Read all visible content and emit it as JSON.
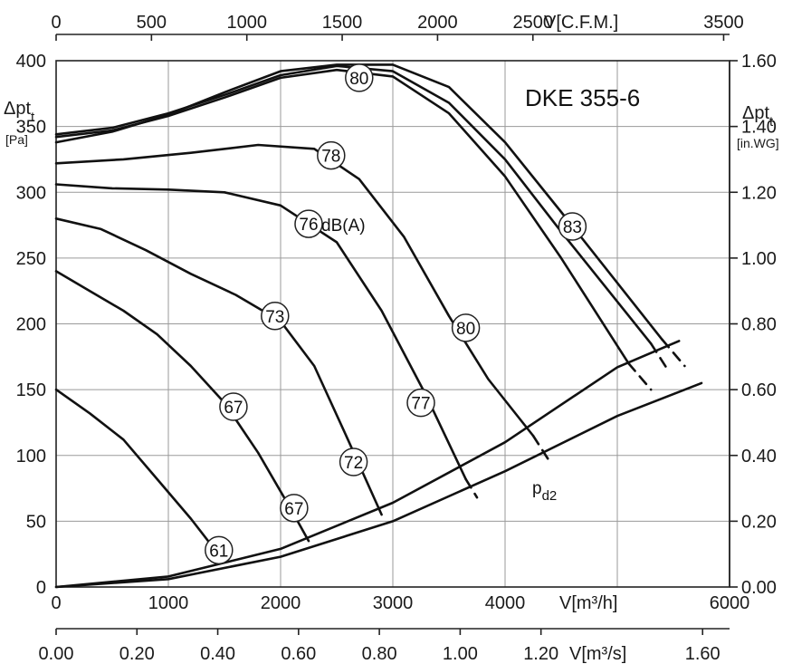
{
  "chart_data": {
    "type": "line",
    "title": "DKE 355-6",
    "x_axis_bottom": {
      "label": "V[m³/h]",
      "ticks": [
        "0",
        "1000",
        "2000",
        "3000",
        "4000",
        "6000"
      ],
      "range": [
        0,
        6000
      ]
    },
    "x_axis_bottom2": {
      "label": "V[m³/s]",
      "ticks": [
        "0.00",
        "0.20",
        "0.40",
        "0.60",
        "0.80",
        "1.00",
        "1.20",
        "1.60"
      ],
      "range": [
        0,
        1.6667
      ]
    },
    "x_axis_top": {
      "label": "V[C.F.M.]",
      "ticks": [
        "0",
        "500",
        "1000",
        "1500",
        "2000",
        "2500",
        "3500"
      ],
      "range": [
        0,
        3531
      ]
    },
    "y_axis_left": {
      "label_main": "Δpt",
      "label_sub": "t",
      "label_unit": "[Pa]",
      "ticks": [
        "0",
        "50",
        "100",
        "150",
        "200",
        "250",
        "300",
        "350",
        "400"
      ],
      "range": [
        0,
        400
      ]
    },
    "y_axis_right": {
      "label_main": "Δpt",
      "label_sub": "t",
      "label_unit": "[in.WG]",
      "ticks": [
        "0.00",
        "0.20",
        "0.40",
        "0.60",
        "0.80",
        "1.00",
        "1.20",
        "1.40",
        "1.60"
      ],
      "range": [
        0,
        1.6
      ]
    },
    "grid": true,
    "unit_label": "dB(A)",
    "pd2_label_main": "p",
    "pd2_label_sub": "d2",
    "series": [
      {
        "x": [
          0,
          300,
          600,
          900,
          1200,
          1400
        ],
        "y": [
          150,
          132,
          112,
          82,
          52,
          30
        ]
      },
      {
        "x": [
          0,
          300,
          600,
          900,
          1200,
          1500,
          1800,
          2100,
          2250
        ],
        "y": [
          240,
          225,
          210,
          192,
          168,
          140,
          102,
          58,
          35
        ]
      },
      {
        "x": [
          0,
          400,
          800,
          1200,
          1600,
          2000,
          2300,
          2600,
          2900
        ],
        "y": [
          280,
          272,
          256,
          238,
          222,
          202,
          168,
          112,
          55
        ]
      },
      {
        "x": [
          0,
          500,
          1000,
          1500,
          2000,
          2500,
          2900,
          3300,
          3650
        ],
        "y": [
          306,
          303,
          302,
          300,
          290,
          262,
          210,
          145,
          82
        ]
      },
      {
        "x": [
          0,
          600,
          1200,
          1800,
          2300,
          2700,
          3100,
          3500,
          3850,
          4250
        ],
        "y": [
          322,
          325,
          330,
          336,
          333,
          310,
          266,
          206,
          158,
          115
        ]
      },
      {
        "x": [
          0,
          500,
          1000,
          1500,
          2000,
          2500,
          3000,
          3500,
          4000,
          4500,
          5100
        ],
        "y": [
          342,
          347,
          358,
          372,
          387,
          393,
          388,
          360,
          312,
          250,
          170
        ]
      },
      {
        "x": [
          0,
          500,
          1000,
          1500,
          2000,
          2500,
          3000,
          3500,
          4000,
          4500,
          5300
        ],
        "y": [
          344,
          349,
          360,
          374,
          389,
          396,
          392,
          368,
          325,
          270,
          185
        ]
      },
      {
        "x": [
          0,
          500,
          1000,
          1500,
          2000,
          2500,
          3000,
          3500,
          4000,
          4500,
          5400
        ],
        "y": [
          338,
          346,
          359,
          376,
          392,
          397,
          397,
          380,
          338,
          285,
          188
        ]
      },
      {
        "x": [
          0,
          1000,
          2000,
          3000,
          4000,
          5000,
          5550
        ],
        "y": [
          0,
          8,
          29,
          64,
          110,
          167,
          187
        ]
      },
      {
        "x": [
          0,
          1000,
          2000,
          3000,
          4000,
          5000,
          5750
        ],
        "y": [
          0,
          6,
          23,
          50,
          88,
          130,
          155
        ]
      }
    ],
    "dashed_segments": [
      {
        "x": [
          3650,
          3750
        ],
        "y": [
          82,
          68
        ]
      },
      {
        "x": [
          4250,
          4400
        ],
        "y": [
          115,
          95
        ]
      },
      {
        "x": [
          5100,
          5300
        ],
        "y": [
          170,
          150
        ]
      },
      {
        "x": [
          5300,
          5450
        ],
        "y": [
          185,
          165
        ]
      },
      {
        "x": [
          5400,
          5600
        ],
        "y": [
          188,
          168
        ]
      }
    ],
    "annotations": [
      {
        "text": "61",
        "x": 1450,
        "y": 28
      },
      {
        "text": "67",
        "x": 1580,
        "y": 137
      },
      {
        "text": "67",
        "x": 2120,
        "y": 60
      },
      {
        "text": "73",
        "x": 1950,
        "y": 206
      },
      {
        "text": "72",
        "x": 2650,
        "y": 95
      },
      {
        "text": "76",
        "x": 2250,
        "y": 276
      },
      {
        "text": "77",
        "x": 3250,
        "y": 140
      },
      {
        "text": "78",
        "x": 2450,
        "y": 328
      },
      {
        "text": "80",
        "x": 3650,
        "y": 197
      },
      {
        "text": "80",
        "x": 2700,
        "y": 387
      },
      {
        "text": "83",
        "x": 4600,
        "y": 274
      }
    ]
  }
}
